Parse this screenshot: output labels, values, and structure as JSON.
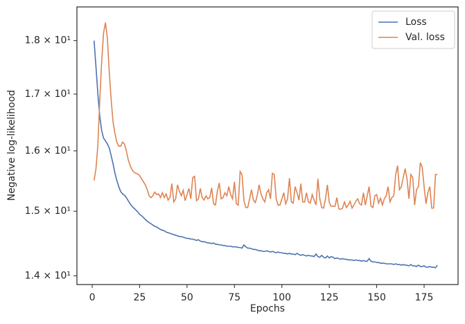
{
  "chart_data": {
    "type": "line",
    "xlabel": "Epochs",
    "ylabel": "Negative log-likelihood",
    "yscale": "log",
    "legend": "upper right",
    "xlim": [
      -8.05,
      192.9
    ],
    "ylim": [
      13.87,
      18.66
    ],
    "xticks": [
      0,
      25,
      50,
      75,
      100,
      125,
      150,
      175
    ],
    "yticks": [
      {
        "value": 14,
        "label": "1.4 × 10¹"
      },
      {
        "value": 15,
        "label": "1.5 × 10¹"
      },
      {
        "value": 16,
        "label": "1.6 × 10¹"
      },
      {
        "value": 17,
        "label": "1.7 × 10¹"
      },
      {
        "value": 18,
        "label": "1.8 × 10¹"
      }
    ],
    "x": [
      1,
      2,
      3,
      4,
      5,
      6,
      7,
      8,
      9,
      10,
      11,
      12,
      13,
      14,
      15,
      16,
      17,
      18,
      19,
      20,
      21,
      22,
      23,
      24,
      25,
      26,
      27,
      28,
      29,
      30,
      31,
      32,
      33,
      34,
      35,
      36,
      37,
      38,
      39,
      40,
      41,
      42,
      43,
      44,
      45,
      46,
      47,
      48,
      49,
      50,
      51,
      52,
      53,
      54,
      55,
      56,
      57,
      58,
      59,
      60,
      61,
      62,
      63,
      64,
      65,
      66,
      67,
      68,
      69,
      70,
      71,
      72,
      73,
      74,
      75,
      76,
      77,
      78,
      79,
      80,
      81,
      82,
      83,
      84,
      85,
      86,
      87,
      88,
      89,
      90,
      91,
      92,
      93,
      94,
      95,
      96,
      97,
      98,
      99,
      100,
      101,
      102,
      103,
      104,
      105,
      106,
      107,
      108,
      109,
      110,
      111,
      112,
      113,
      114,
      115,
      116,
      117,
      118,
      119,
      120,
      121,
      122,
      123,
      124,
      125,
      126,
      127,
      128,
      129,
      130,
      131,
      132,
      133,
      134,
      135,
      136,
      137,
      138,
      139,
      140,
      141,
      142,
      143,
      144,
      145,
      146,
      147,
      148,
      149,
      150,
      151,
      152,
      153,
      154,
      155,
      156,
      157,
      158,
      159,
      160,
      161,
      162,
      163,
      164,
      165,
      166,
      167,
      168,
      169,
      170,
      171,
      172,
      173,
      174,
      175,
      176,
      177,
      178,
      179,
      180,
      181,
      182
    ],
    "series": [
      {
        "name": "Loss",
        "color": "#4c72b0",
        "values": [
          18.0,
          17.5,
          17.0,
          16.6,
          16.35,
          16.22,
          16.17,
          16.12,
          16.05,
          15.92,
          15.78,
          15.62,
          15.5,
          15.4,
          15.32,
          15.28,
          15.26,
          15.22,
          15.17,
          15.12,
          15.08,
          15.05,
          15.02,
          14.99,
          14.95,
          14.93,
          14.9,
          14.87,
          14.84,
          14.82,
          14.8,
          14.78,
          14.76,
          14.75,
          14.73,
          14.71,
          14.7,
          14.69,
          14.67,
          14.66,
          14.65,
          14.64,
          14.63,
          14.62,
          14.61,
          14.6,
          14.6,
          14.59,
          14.58,
          14.57,
          14.57,
          14.56,
          14.56,
          14.55,
          14.54,
          14.55,
          14.53,
          14.52,
          14.52,
          14.51,
          14.5,
          14.5,
          14.49,
          14.5,
          14.48,
          14.48,
          14.47,
          14.47,
          14.46,
          14.46,
          14.45,
          14.45,
          14.45,
          14.44,
          14.44,
          14.44,
          14.43,
          14.43,
          14.42,
          14.47,
          14.44,
          14.42,
          14.42,
          14.41,
          14.4,
          14.4,
          14.39,
          14.38,
          14.38,
          14.37,
          14.37,
          14.38,
          14.37,
          14.36,
          14.37,
          14.36,
          14.35,
          14.36,
          14.35,
          14.35,
          14.34,
          14.34,
          14.33,
          14.34,
          14.33,
          14.33,
          14.32,
          14.34,
          14.32,
          14.31,
          14.32,
          14.31,
          14.3,
          14.31,
          14.3,
          14.3,
          14.29,
          14.33,
          14.29,
          14.28,
          14.31,
          14.28,
          14.27,
          14.3,
          14.27,
          14.29,
          14.28,
          14.26,
          14.27,
          14.26,
          14.25,
          14.26,
          14.25,
          14.25,
          14.24,
          14.24,
          14.24,
          14.23,
          14.24,
          14.23,
          14.23,
          14.22,
          14.23,
          14.22,
          14.22,
          14.26,
          14.22,
          14.21,
          14.21,
          14.2,
          14.2,
          14.19,
          14.19,
          14.19,
          14.18,
          14.18,
          14.18,
          14.18,
          14.17,
          14.18,
          14.17,
          14.17,
          14.16,
          14.17,
          14.16,
          14.16,
          14.15,
          14.17,
          14.15,
          14.15,
          14.14,
          14.16,
          14.14,
          14.14,
          14.15,
          14.13,
          14.13,
          14.14,
          14.13,
          14.13,
          14.12,
          14.16
        ]
      },
      {
        "name": "Val. loss",
        "color": "#dd8452",
        "values": [
          15.5,
          15.7,
          16.1,
          16.9,
          17.6,
          18.15,
          18.35,
          18.05,
          17.4,
          16.9,
          16.5,
          16.3,
          16.15,
          16.08,
          16.08,
          16.15,
          16.12,
          16.0,
          15.85,
          15.75,
          15.68,
          15.64,
          15.62,
          15.61,
          15.58,
          15.53,
          15.48,
          15.43,
          15.35,
          15.25,
          15.22,
          15.25,
          15.31,
          15.27,
          15.28,
          15.22,
          15.3,
          15.22,
          15.28,
          15.18,
          15.22,
          15.45,
          15.15,
          15.2,
          15.43,
          15.32,
          15.25,
          15.34,
          15.17,
          15.27,
          15.37,
          15.2,
          15.55,
          15.57,
          15.17,
          15.2,
          15.37,
          15.22,
          15.18,
          15.25,
          15.2,
          15.22,
          15.38,
          15.12,
          15.1,
          15.33,
          15.46,
          15.2,
          15.22,
          15.3,
          15.25,
          15.4,
          15.27,
          15.2,
          15.48,
          15.12,
          15.1,
          15.65,
          15.6,
          15.17,
          15.06,
          15.06,
          15.2,
          15.35,
          15.18,
          15.14,
          15.25,
          15.43,
          15.28,
          15.2,
          15.15,
          15.3,
          15.35,
          15.2,
          15.62,
          15.6,
          15.2,
          15.1,
          15.1,
          15.2,
          15.3,
          15.12,
          15.2,
          15.54,
          15.15,
          15.13,
          15.4,
          15.3,
          15.18,
          15.45,
          15.15,
          15.15,
          15.3,
          15.15,
          15.13,
          15.27,
          15.18,
          15.1,
          15.53,
          15.2,
          15.06,
          15.05,
          15.2,
          15.43,
          15.14,
          15.08,
          15.08,
          15.08,
          15.22,
          15.04,
          15.03,
          15.05,
          15.15,
          15.06,
          15.1,
          15.16,
          15.05,
          15.1,
          15.16,
          15.2,
          15.12,
          15.1,
          15.3,
          15.1,
          15.25,
          15.4,
          15.08,
          15.06,
          15.25,
          15.27,
          15.13,
          15.21,
          15.1,
          15.2,
          15.25,
          15.4,
          15.15,
          15.22,
          15.25,
          15.6,
          15.75,
          15.35,
          15.4,
          15.55,
          15.7,
          15.52,
          15.2,
          15.6,
          15.55,
          15.1,
          15.35,
          15.4,
          15.8,
          15.72,
          15.4,
          15.12,
          15.3,
          15.4,
          15.05,
          15.05,
          15.6,
          15.6
        ]
      }
    ]
  }
}
